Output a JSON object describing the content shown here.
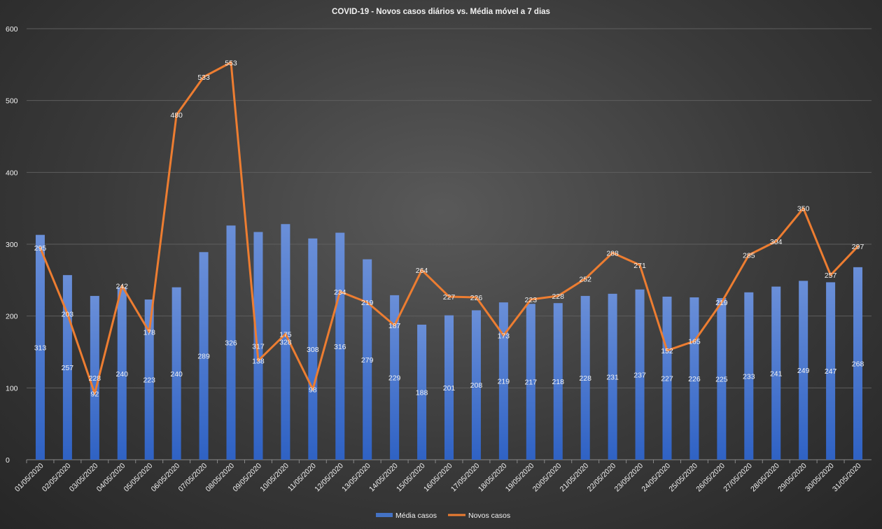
{
  "chart_data": {
    "type": "bar+line",
    "title": "COVID-19  - Novos casos diários  vs. Média  móvel  a 7 dias",
    "xlabel": "",
    "ylabel": "",
    "ylim": [
      0,
      600
    ],
    "yticks": [
      0,
      100,
      200,
      300,
      400,
      500,
      600
    ],
    "grid": true,
    "legend_position": "bottom",
    "categories": [
      "01/05/2020",
      "02/05/2020",
      "03/05/2020",
      "04/05/2020",
      "05/05/2020",
      "06/05/2020",
      "07/05/2020",
      "08/05/2020",
      "09/05/2020",
      "10/05/2020",
      "11/05/2020",
      "12/05/2020",
      "13/05/2020",
      "14/05/2020",
      "15/05/2020",
      "16/05/2020",
      "17/05/2020",
      "18/05/2020",
      "19/05/2020",
      "20/05/2020",
      "21/05/2020",
      "22/05/2020",
      "23/05/2020",
      "24/05/2020",
      "25/05/2020",
      "26/05/2020",
      "27/05/2020",
      "28/05/2020",
      "29/05/2020",
      "30/05/2020",
      "31/05/2020"
    ],
    "series": [
      {
        "name": "Média casos",
        "type": "bar",
        "color": "#4472c4",
        "values": [
          313,
          257,
          228,
          240,
          223,
          240,
          289,
          326,
          317,
          328,
          308,
          316,
          279,
          229,
          188,
          201,
          208,
          219,
          217,
          218,
          228,
          231,
          237,
          227,
          226,
          225,
          233,
          241,
          249,
          247,
          268
        ]
      },
      {
        "name": "Novos casos",
        "type": "line",
        "color": "#ed7d31",
        "values": [
          295,
          203,
          92,
          242,
          178,
          480,
          533,
          553,
          138,
          175,
          98,
          234,
          219,
          187,
          264,
          227,
          226,
          173,
          223,
          228,
          252,
          288,
          271,
          152,
          165,
          219,
          285,
          304,
          350,
          257,
          297
        ]
      }
    ]
  }
}
